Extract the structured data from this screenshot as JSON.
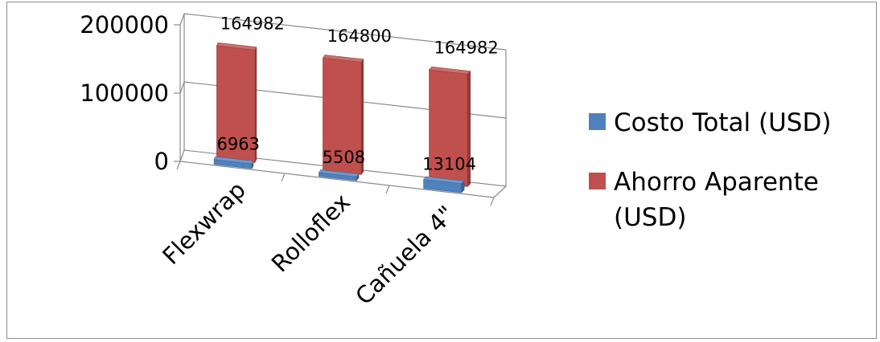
{
  "chart_data": {
    "type": "bar",
    "style": "3d-clustered-column",
    "categories": [
      "Flexwrap",
      "Rolloflex",
      "Cañuela 4\""
    ],
    "series": [
      {
        "name": "Costo Total (USD)",
        "color": "#4f81bd",
        "values": [
          6963,
          5508,
          13104
        ]
      },
      {
        "name": "Ahorro Aparente (USD)",
        "color": "#c0504d",
        "values": [
          164982,
          164800,
          164982
        ]
      }
    ],
    "y_ticks": [
      "0",
      "100000",
      "200000"
    ],
    "ylim": [
      0,
      200000
    ],
    "grid": true,
    "legend_position": "right"
  }
}
